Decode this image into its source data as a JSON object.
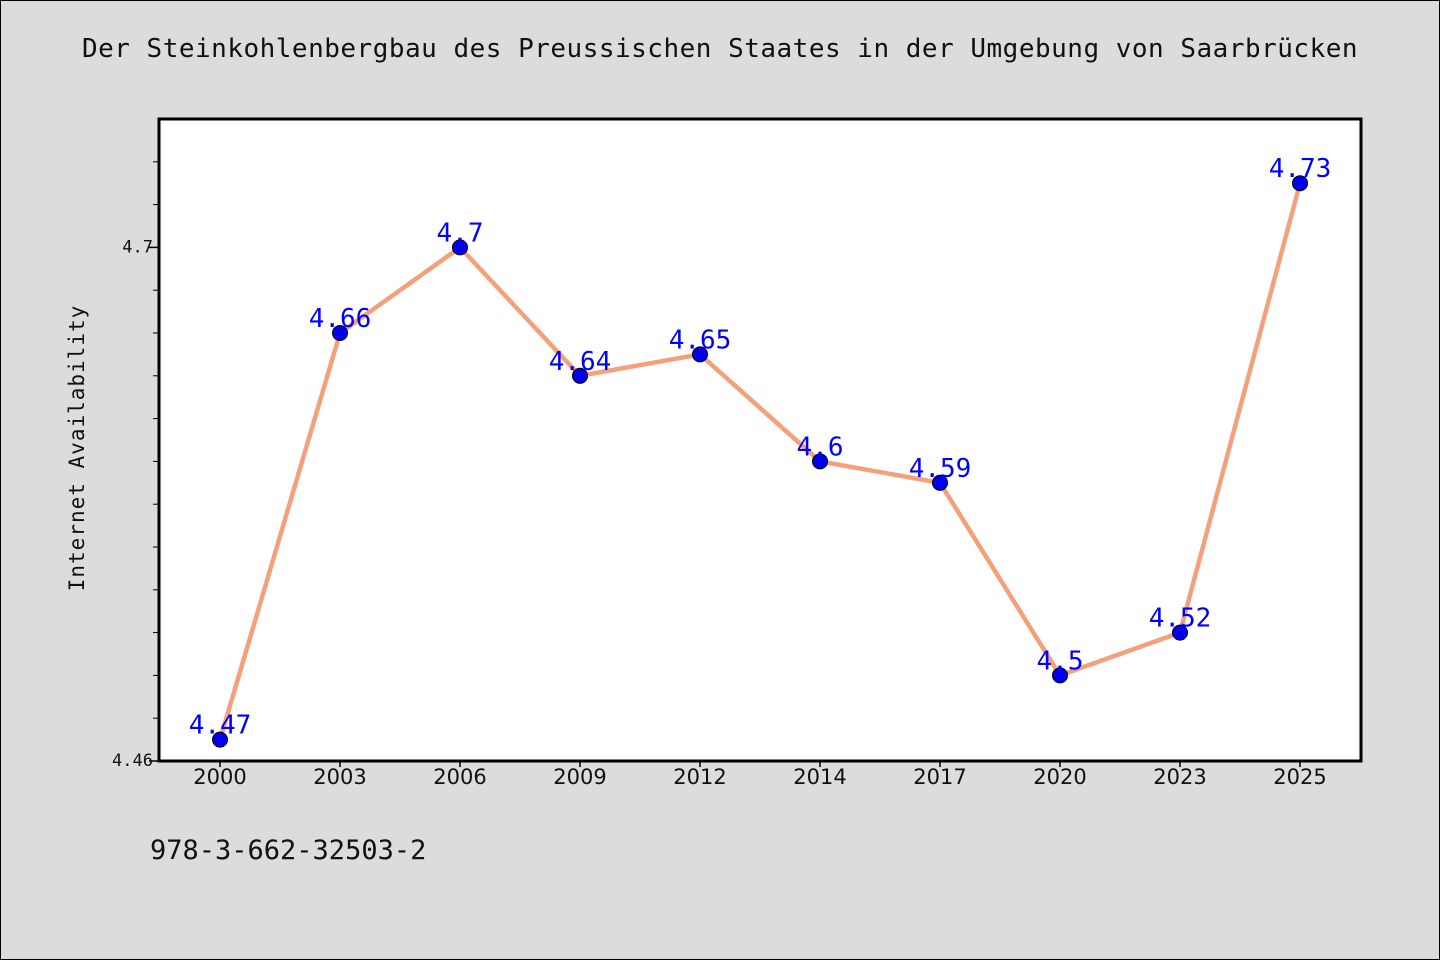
{
  "chart_data": {
    "type": "line",
    "title": "Der Steinkohlenbergbau des Preussischen Staates in der Umgebung von Saarbrücken",
    "xlabel": "",
    "ylabel": "Internet Availability",
    "categories": [
      "2000",
      "2003",
      "2006",
      "2009",
      "2012",
      "2014",
      "2017",
      "2020",
      "2023",
      "2025"
    ],
    "series": [
      {
        "values": [
          4.47,
          4.66,
          4.7,
          4.64,
          4.65,
          4.6,
          4.59,
          4.5,
          4.52,
          4.73
        ],
        "labels": [
          "4.47",
          "4.66",
          "4.7",
          "4.64",
          "4.65",
          "4.6",
          "4.59",
          "4.5",
          "4.52",
          "4.73"
        ]
      }
    ],
    "yticks": [
      "4.46",
      "4.7"
    ],
    "ytick_values": [
      4.46,
      4.7
    ],
    "ylim": [
      4.46,
      4.76
    ],
    "grid": false,
    "line_color": "#f4a07a",
    "marker_color": "#0000ee",
    "label_color": "#0000ff"
  },
  "footer": {
    "isbn": "978-3-662-32503-2"
  }
}
